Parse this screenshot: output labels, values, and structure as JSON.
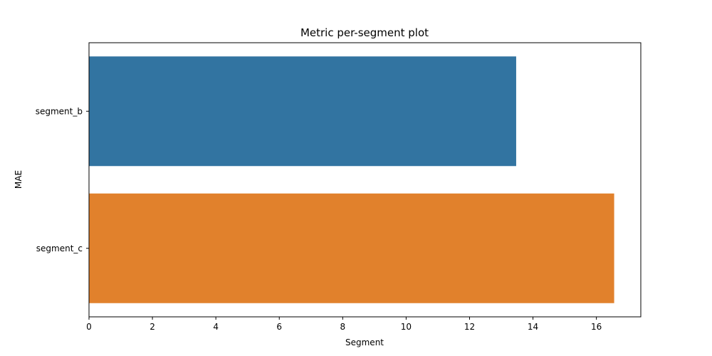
{
  "chart_data": {
    "type": "bar",
    "orientation": "horizontal",
    "title": "Metric per-segment plot",
    "xlabel": "Segment",
    "ylabel": "MAE",
    "categories": [
      "segment_b",
      "segment_c"
    ],
    "values": [
      13.47,
      16.56
    ],
    "colors": [
      "#3274a1",
      "#e1812c"
    ],
    "xlim": [
      0,
      17.4
    ],
    "xticks": [
      0,
      2,
      4,
      6,
      8,
      10,
      12,
      14,
      16
    ],
    "grid": false,
    "legend": "none"
  }
}
